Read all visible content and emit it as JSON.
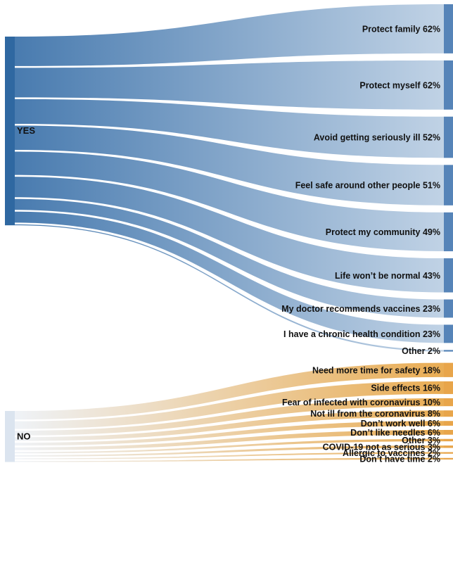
{
  "chart_data": {
    "type": "sankey",
    "title": "",
    "sources": [
      {
        "id": "yes",
        "label": "YES",
        "color": "#2f68a1",
        "link_color_start": "#3f74ab",
        "link_color_end": "#bdd0e4"
      },
      {
        "id": "no",
        "label": "NO",
        "color": "#dbe4ef",
        "link_color_start": "#eef2f7",
        "link_color_end": "#e8a84a"
      }
    ],
    "targets": [
      {
        "source": "yes",
        "label": "Protect family 62%",
        "value": 62
      },
      {
        "source": "yes",
        "label": "Protect myself 62%",
        "value": 62
      },
      {
        "source": "yes",
        "label": "Avoid getting seriously ill 52%",
        "value": 52
      },
      {
        "source": "yes",
        "label": "Feel safe around other people 51%",
        "value": 51
      },
      {
        "source": "yes",
        "label": "Protect my community 49%",
        "value": 49
      },
      {
        "source": "yes",
        "label": "Life won’t be normal 43%",
        "value": 43
      },
      {
        "source": "yes",
        "label": "My doctor recommends vaccines 23%",
        "value": 23
      },
      {
        "source": "yes",
        "label": "I have a chronic health condition 23%",
        "value": 23
      },
      {
        "source": "yes",
        "label": "Other 2%",
        "value": 2
      },
      {
        "source": "no",
        "label": "Need more time for safety 18%",
        "value": 18
      },
      {
        "source": "no",
        "label": "Side effects 16%",
        "value": 16
      },
      {
        "source": "no",
        "label": "Fear of infected with coronavirus 10%",
        "value": 10
      },
      {
        "source": "no",
        "label": "Not ill from the coronavirus 8%",
        "value": 8
      },
      {
        "source": "no",
        "label": "Don’t work well 6%",
        "value": 6
      },
      {
        "source": "no",
        "label": "Don’t like needles 6%",
        "value": 6
      },
      {
        "source": "no",
        "label": "Other 3%",
        "value": 3
      },
      {
        "source": "no",
        "label": "COVID-19 not as serious 3%",
        "value": 3
      },
      {
        "source": "no",
        "label": "Allergic to vaccines 2%",
        "value": 2
      },
      {
        "source": "no",
        "label": "Don’t have time 2%",
        "value": 2
      }
    ]
  }
}
